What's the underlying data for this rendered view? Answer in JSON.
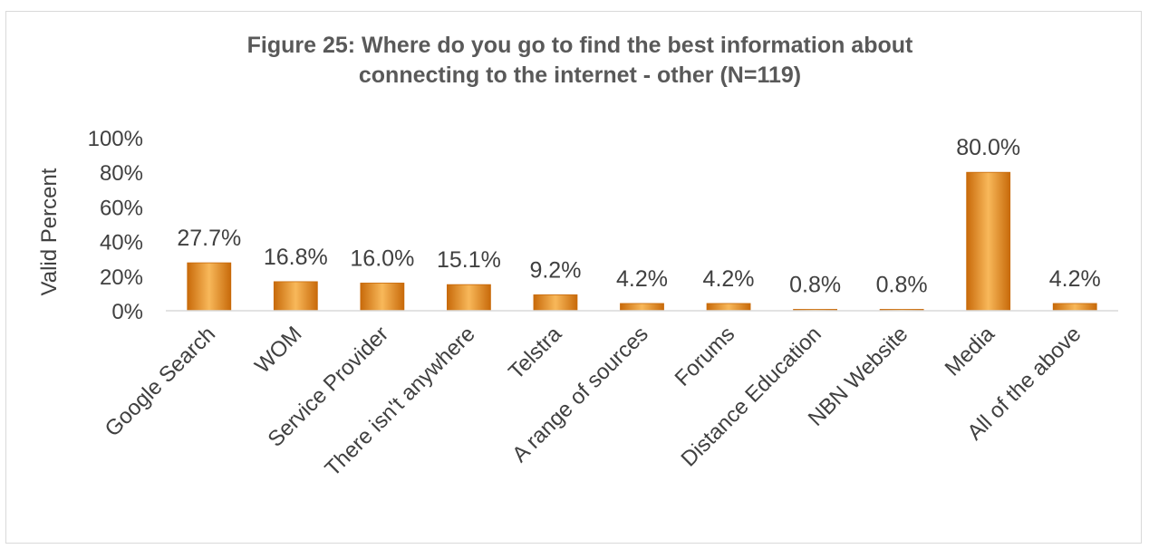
{
  "chart_data": {
    "type": "bar",
    "title_lines": [
      "Figure 25: Where do you go to find the best information about",
      "connecting to the internet -  other (N=119)"
    ],
    "ylabel": "Valid Percent",
    "ylim": [
      0,
      100
    ],
    "yticks": [
      "0%",
      "20%",
      "40%",
      "60%",
      "80%",
      "100%"
    ],
    "categories": [
      "Google Search",
      "WOM",
      "Service Provider",
      "There isn't anywhere",
      "Telstra",
      "A range of sources",
      "Forums",
      "Distance Education",
      "NBN Website",
      "Media",
      "All of the above"
    ],
    "values": [
      27.7,
      16.8,
      16.0,
      15.1,
      9.2,
      4.2,
      4.2,
      0.8,
      0.8,
      80.0,
      4.2
    ],
    "data_labels": [
      "27.7%",
      "16.8%",
      "16.0%",
      "15.1%",
      "9.2%",
      "4.2%",
      "4.2%",
      "0.8%",
      "0.8%",
      "80.0%",
      "4.2%"
    ],
    "grid": false,
    "colors": {
      "bar": "#f0921e",
      "bar_light": "#f8b85a",
      "bar_dark": "#c86a0a",
      "axis": "#d9d9d9"
    }
  }
}
